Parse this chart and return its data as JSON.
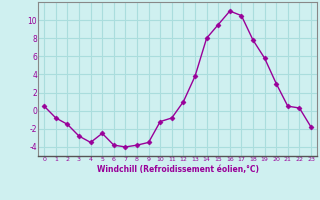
{
  "x": [
    0,
    1,
    2,
    3,
    4,
    5,
    6,
    7,
    8,
    9,
    10,
    11,
    12,
    13,
    14,
    15,
    16,
    17,
    18,
    19,
    20,
    21,
    22,
    23
  ],
  "y": [
    0.5,
    -0.8,
    -1.5,
    -2.8,
    -3.5,
    -2.5,
    -3.8,
    -4.0,
    -3.8,
    -3.5,
    -1.2,
    -0.8,
    1.0,
    3.8,
    8.0,
    9.5,
    11.0,
    10.5,
    7.8,
    5.8,
    3.0,
    0.5,
    0.3,
    -1.8
  ],
  "line_color": "#990099",
  "marker": "D",
  "marker_size": 2.5,
  "bg_color": "#cff0f0",
  "grid_color": "#aadddd",
  "xlabel": "Windchill (Refroidissement éolien,°C)",
  "xlabel_color": "#990099",
  "tick_color": "#990099",
  "ylim": [
    -5,
    12
  ],
  "yticks": [
    -4,
    -2,
    0,
    2,
    4,
    6,
    8,
    10
  ],
  "xlim": [
    -0.5,
    23.5
  ],
  "xticks": [
    0,
    1,
    2,
    3,
    4,
    5,
    6,
    7,
    8,
    9,
    10,
    11,
    12,
    13,
    14,
    15,
    16,
    17,
    18,
    19,
    20,
    21,
    22,
    23
  ]
}
